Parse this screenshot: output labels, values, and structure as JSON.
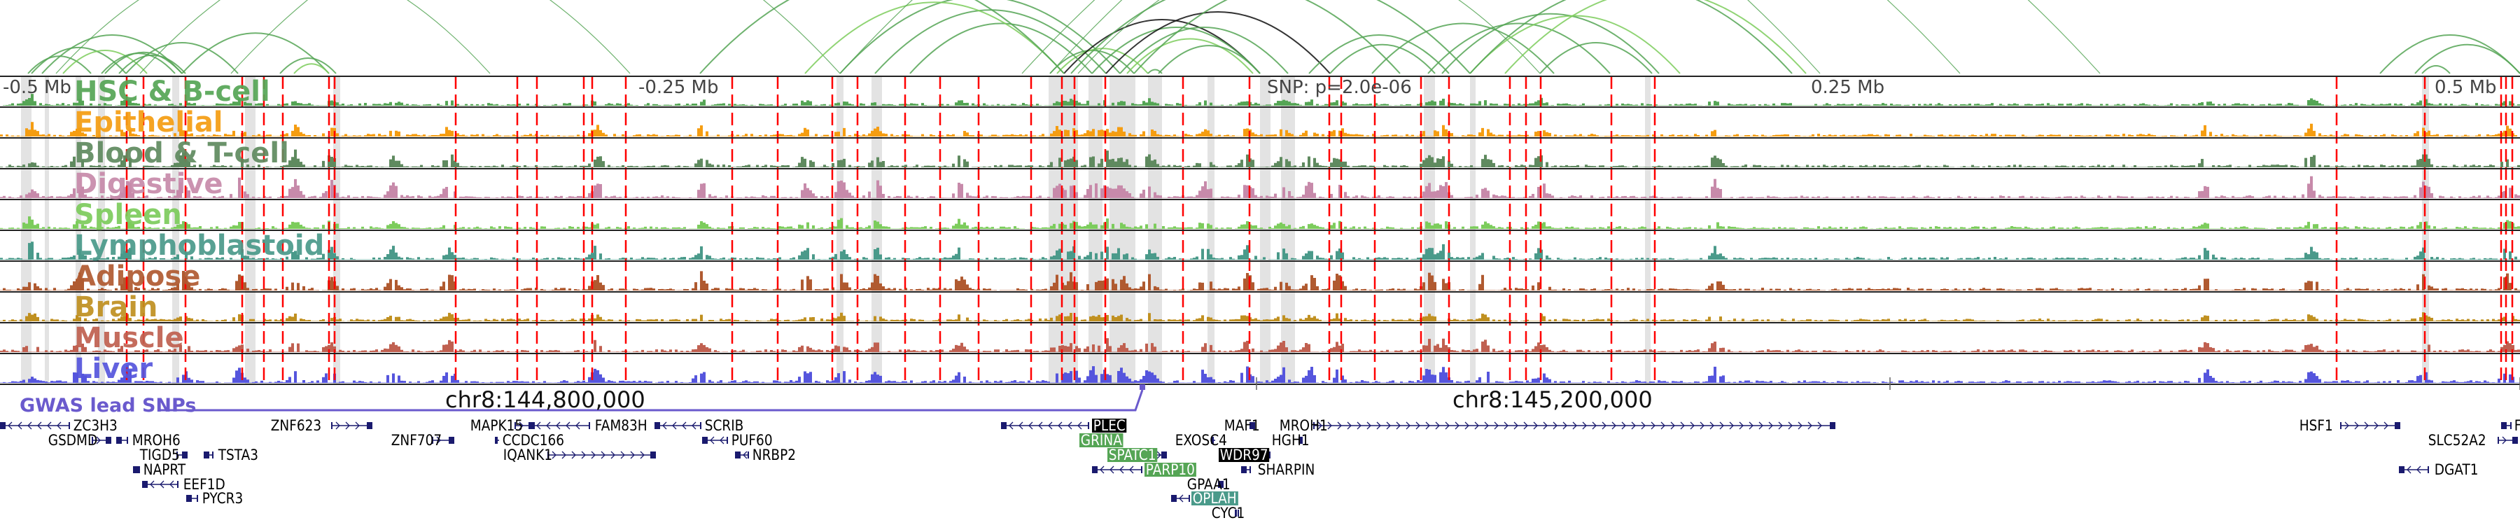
{
  "tracks": [
    {
      "label": "HSC & B-cell",
      "color": "#55a555"
    },
    {
      "label": "Epithelial",
      "color": "#f59d11"
    },
    {
      "label": "Blood & T-cell",
      "color": "#5f8a5f"
    },
    {
      "label": "Digestive",
      "color": "#c78aaa"
    },
    {
      "label": "Spleen",
      "color": "#7ccc5c"
    },
    {
      "label": "Lymphoblastoid",
      "color": "#4a9a8a"
    },
    {
      "label": "Adipose",
      "color": "#b05a30"
    },
    {
      "label": "Brain",
      "color": "#c09020"
    },
    {
      "label": "Muscle",
      "color": "#c06050"
    },
    {
      "label": "Liver",
      "color": "#5555dd"
    }
  ],
  "axis": {
    "offset_labels": [
      "-0.5 Mb",
      "-0.25 Mb",
      "0.25 Mb",
      "0.5 Mb"
    ],
    "snp_label": "SNP: p=2.0e-06",
    "chr_labels": [
      "chr8:144,800,000",
      "chr8:145,200,000"
    ]
  },
  "gwas": {
    "label": "GWAS lead SNPs",
    "color": "#6a5acd"
  },
  "colors": {
    "snp_line": "#ff0000",
    "loop": "#55a555",
    "gene": "#1a1a6e",
    "highlight_band": "#e3e3e3"
  },
  "genes": [
    {
      "name": "ZC3H3",
      "strand": "-",
      "highlight": "none"
    },
    {
      "name": "ZNF623",
      "strand": "+",
      "highlight": "none"
    },
    {
      "name": "MAPK15",
      "strand": "+",
      "highlight": "none"
    },
    {
      "name": "FAM83H",
      "strand": "-",
      "highlight": "none"
    },
    {
      "name": "SCRIB",
      "strand": "-",
      "highlight": "none"
    },
    {
      "name": "PLEC",
      "strand": "-",
      "highlight": "black"
    },
    {
      "name": "MAF1",
      "strand": "+",
      "highlight": "none"
    },
    {
      "name": "MROH1",
      "strand": "+",
      "highlight": "none"
    },
    {
      "name": "HSF1",
      "strand": "+",
      "highlight": "none"
    },
    {
      "name": "F",
      "strand": "-",
      "highlight": "none"
    },
    {
      "name": "GSDMD",
      "strand": "+",
      "highlight": "none"
    },
    {
      "name": "MROH6",
      "strand": "-",
      "highlight": "none"
    },
    {
      "name": "ZNF707",
      "strand": "+",
      "highlight": "none"
    },
    {
      "name": "CCDC166",
      "strand": "+",
      "highlight": "none"
    },
    {
      "name": "PUF60",
      "strand": "-",
      "highlight": "none"
    },
    {
      "name": "GRINA",
      "strand": "+",
      "highlight": "green"
    },
    {
      "name": "EXOSC4",
      "strand": "+",
      "highlight": "none"
    },
    {
      "name": "HGH1",
      "strand": "+",
      "highlight": "none"
    },
    {
      "name": "SLC52A2",
      "strand": "+",
      "highlight": "none"
    },
    {
      "name": "TIGD5",
      "strand": "+",
      "highlight": "none"
    },
    {
      "name": "TSTA3",
      "strand": "-",
      "highlight": "none"
    },
    {
      "name": "IQANK1",
      "strand": "+",
      "highlight": "none"
    },
    {
      "name": "NRBP2",
      "strand": "-",
      "highlight": "none"
    },
    {
      "name": "SPATC1",
      "strand": "+",
      "highlight": "green"
    },
    {
      "name": "WDR97",
      "strand": "+",
      "highlight": "black"
    },
    {
      "name": "NAPRT",
      "strand": "-",
      "highlight": "none"
    },
    {
      "name": "PARP10",
      "strand": "-",
      "highlight": "green"
    },
    {
      "name": "SHARPIN",
      "strand": "-",
      "highlight": "none"
    },
    {
      "name": "DGAT1",
      "strand": "-",
      "highlight": "none"
    },
    {
      "name": "EEF1D",
      "strand": "-",
      "highlight": "none"
    },
    {
      "name": "GPAA1",
      "strand": "+",
      "highlight": "none"
    },
    {
      "name": "OPLAH",
      "strand": "-",
      "highlight": "teal"
    },
    {
      "name": "PYCR3",
      "strand": "-",
      "highlight": "none"
    },
    {
      "name": "CYC1",
      "strand": "+",
      "highlight": "none"
    }
  ]
}
